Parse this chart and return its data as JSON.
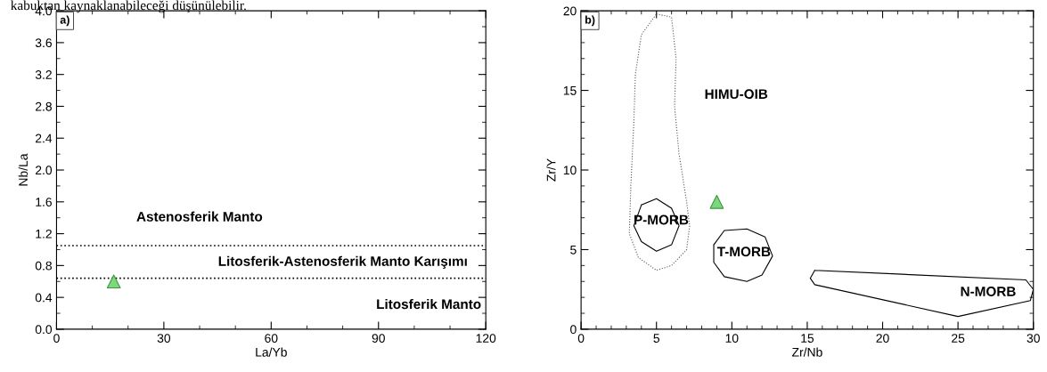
{
  "chart_data": [
    {
      "type": "scatter",
      "title": "a)",
      "xlabel": "La/Yb",
      "ylabel": "Nb/La",
      "xlim": [
        0,
        120
      ],
      "xticks": [
        0,
        30,
        60,
        90,
        120
      ],
      "ylim": [
        0,
        4
      ],
      "yticks": [
        {
          "value": 0,
          "label": "0.0"
        },
        0.4,
        0.8,
        1.2,
        1.6,
        {
          "value": 2,
          "label": "2.0"
        },
        2.4,
        2.8,
        3.2,
        3.6,
        {
          "value": 4,
          "label": "4.0"
        }
      ],
      "ref_lines": [
        {
          "axis": "y",
          "value": 1.05,
          "color": "#000000",
          "line_style": "dotted"
        },
        {
          "axis": "y",
          "value": 0.64,
          "color": "#000000",
          "line_style": "dotted"
        }
      ],
      "series": [
        {
          "color": "#7ed67e",
          "marker": "triangle",
          "x": [
            16
          ],
          "values": [
            0.6
          ]
        }
      ],
      "annotations": [
        "kabuktan kaynaklanabileceği düşünülebilir.",
        "Astenosferik Manto",
        "Litosferik-Astenosferik Manto Karışımı",
        "Litosferik Manto"
      ]
    },
    {
      "type": "scatter",
      "title": "b)",
      "xlabel": "Zr/Nb",
      "ylabel": "Zr/Y",
      "xlim": [
        0,
        30
      ],
      "xticks": [
        0,
        5,
        10,
        15,
        20,
        25,
        30
      ],
      "ylim": [
        0,
        20
      ],
      "yticks": [
        0,
        5,
        10,
        15,
        20
      ],
      "series": [
        {
          "color": "#7ed67e",
          "marker": "triangle",
          "x": [
            9
          ],
          "values": [
            8
          ]
        }
      ],
      "annotations": [
        "HIMU-OIB",
        "P-MORB",
        "T-MORB",
        "N-MORB"
      ]
    }
  ]
}
